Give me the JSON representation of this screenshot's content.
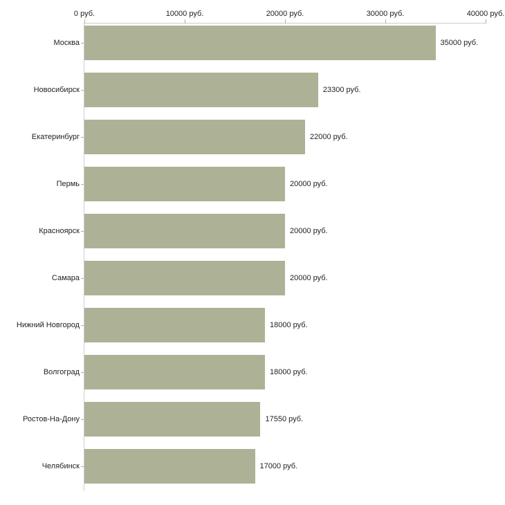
{
  "chart_data": {
    "type": "bar",
    "orientation": "horizontal",
    "title": "",
    "xlabel": "",
    "ylabel": "",
    "unit": "руб.",
    "grid": false,
    "categories": [
      "Москва",
      "Новосибирск",
      "Екатеринбург",
      "Пермь",
      "Красноярск",
      "Самара",
      "Нижний Новгород",
      "Волгоград",
      "Ростов-На-Дону",
      "Челябинск"
    ],
    "values": [
      35000,
      23300,
      22000,
      20000,
      20000,
      20000,
      18000,
      18000,
      17550,
      17000
    ],
    "value_labels": [
      "35000 руб.",
      "23300 руб.",
      "22000 руб.",
      "20000 руб.",
      "20000 руб.",
      "20000 руб.",
      "18000 руб.",
      "18000 руб.",
      "17550 руб.",
      "17000 руб."
    ],
    "x_axis": {
      "position": "top",
      "min": 0,
      "max": 40000,
      "ticks": [
        0,
        10000,
        20000,
        30000,
        40000
      ],
      "tick_labels": [
        "0 руб.",
        "10000 руб.",
        "20000 руб.",
        "30000 руб.",
        "40000 руб."
      ]
    },
    "colors": {
      "bar": "#adb296",
      "axis_line": "#cccccc",
      "tick": "#b3b38c",
      "text": "#222222",
      "background": "#ffffff"
    }
  }
}
